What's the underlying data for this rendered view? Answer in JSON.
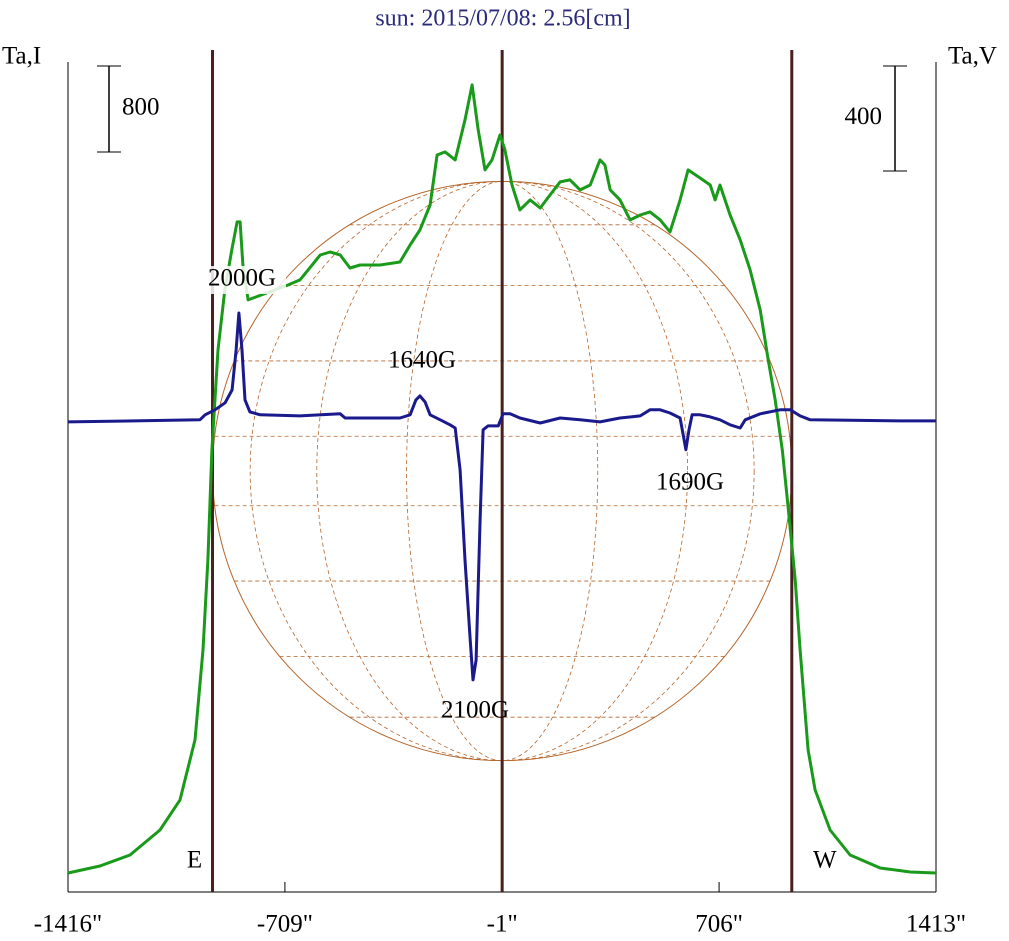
{
  "chart_data": {
    "type": "line",
    "title": "sun: 2015/07/08: 2.56[cm]",
    "y_label": "Ta,I",
    "y2_label": "Ta,V",
    "xlim": [
      -1416,
      1413
    ],
    "xticks": [
      {
        "value": -1416,
        "label": "-1416\""
      },
      {
        "value": -709,
        "label": "-709\""
      },
      {
        "value": -1,
        "label": "-1\""
      },
      {
        "value": 706,
        "label": "706\""
      },
      {
        "value": 1413,
        "label": "1413\""
      }
    ],
    "ylim": [
      0,
      7830
    ],
    "y2lim": [
      -1795,
      1413
    ],
    "limbs": [
      -945,
      -1,
      943
    ],
    "limb_labels": [
      "E",
      "W"
    ],
    "scale_bars": [
      {
        "value": 800,
        "axis": "y"
      },
      {
        "value": 400,
        "axis": "y2"
      }
    ],
    "annotations": [
      "2000G",
      "1640G",
      "2100G",
      "1690G"
    ],
    "series": [
      {
        "color": "#1a9a1a",
        "x": [
          -1416,
          -1312,
          -1214,
          -1116,
          -1051,
          -1002,
          -976,
          -960,
          -947,
          -927,
          -905,
          -882,
          -865,
          -855,
          -846,
          -829,
          -699,
          -660,
          -594,
          -562,
          -529,
          -497,
          -464,
          -399,
          -334,
          -301,
          -269,
          -236,
          -213,
          -187,
          -154,
          -122,
          -99,
          -79,
          -57,
          -34,
          -8,
          8,
          31,
          57,
          90,
          123,
          155,
          188,
          220,
          253,
          286,
          318,
          334,
          351,
          383,
          416,
          449,
          481,
          514,
          546,
          579,
          605,
          644,
          677,
          693,
          709,
          742,
          775,
          807,
          840,
          866,
          889,
          912,
          932,
          954,
          970,
          996,
          1019,
          1068,
          1133,
          1231,
          1329,
          1413
        ],
        "values": [
          177,
          242,
          344,
          577,
          856,
          1414,
          2251,
          3088,
          4111,
          5041,
          5599,
          5971,
          6231,
          6231,
          5831,
          5506,
          5645,
          5692,
          5924,
          5952,
          5924,
          5803,
          5831,
          5831,
          5859,
          6017,
          6157,
          6389,
          6854,
          6882,
          6808,
          7180,
          7505,
          7087,
          6715,
          6808,
          7040,
          6901,
          6575,
          6343,
          6436,
          6361,
          6482,
          6603,
          6622,
          6529,
          6575,
          6808,
          6761,
          6529,
          6436,
          6250,
          6296,
          6324,
          6250,
          6138,
          6436,
          6715,
          6640,
          6575,
          6436,
          6575,
          6296,
          6064,
          5785,
          5413,
          4948,
          4576,
          4111,
          3553,
          2902,
          2251,
          1321,
          949,
          577,
          344,
          223,
          186,
          177
        ]
      },
      {
        "color": "#1a1a8c",
        "axis": "y2",
        "x": [
          -1416,
          -986,
          -969,
          -937,
          -904,
          -881,
          -868,
          -859,
          -849,
          -839,
          -823,
          -790,
          -660,
          -529,
          -513,
          -334,
          -301,
          -282,
          -269,
          -252,
          -236,
          -203,
          -171,
          -154,
          -138,
          -122,
          -105,
          -96,
          -86,
          -73,
          -63,
          -47,
          -14,
          2,
          25,
          57,
          123,
          188,
          253,
          318,
          383,
          449,
          481,
          514,
          546,
          579,
          592,
          598,
          608,
          618,
          644,
          677,
          709,
          742,
          775,
          791,
          840,
          905,
          938,
          970,
          1003,
          1296,
          1413
        ],
        "values": [
          -4,
          4,
          23,
          42,
          69,
          118,
          270,
          411,
          270,
          80,
          34,
          23,
          19,
          27,
          11,
          11,
          23,
          80,
          95,
          72,
          23,
          4,
          -15,
          -27,
          -187,
          -530,
          -834,
          -987,
          -911,
          -377,
          -34,
          -19,
          -19,
          27,
          27,
          11,
          -8,
          11,
          4,
          -4,
          11,
          19,
          42,
          42,
          30,
          11,
          -72,
          -110,
          -34,
          23,
          23,
          15,
          4,
          -15,
          -27,
          4,
          27,
          42,
          42,
          19,
          4,
          0,
          0
        ]
      }
    ]
  }
}
